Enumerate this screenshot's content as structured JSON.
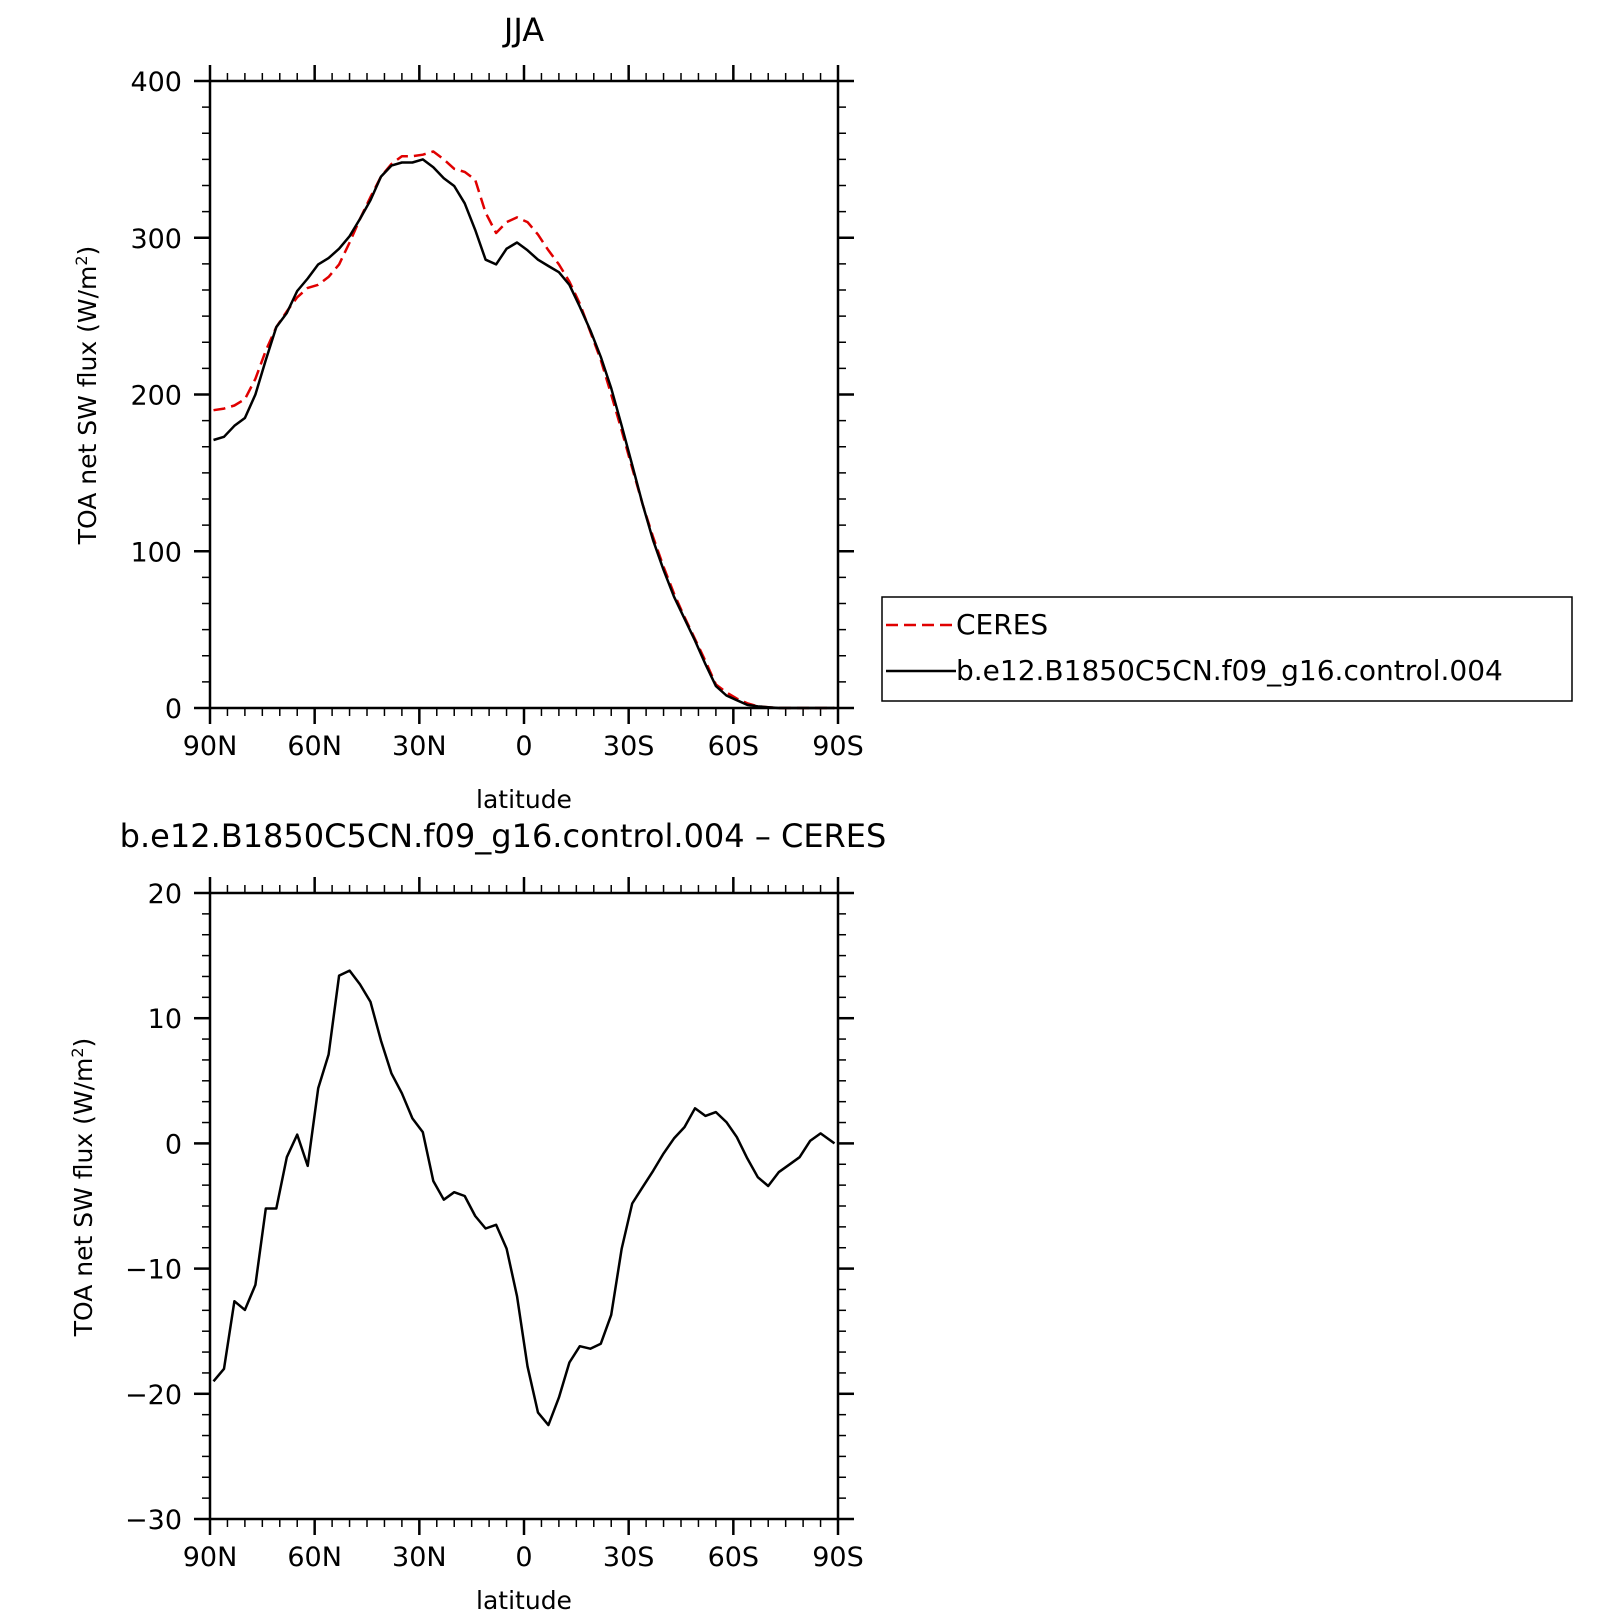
{
  "chart_data": [
    {
      "type": "line",
      "title": "JJA",
      "xlabel": "latitude",
      "ylabel": "TOA net SW flux (W/m²)",
      "ylabel_main": "TOA net SW flux (W/m",
      "ylabel_sup": "2",
      "ylabel_end": ")",
      "xlim": [
        90,
        -90
      ],
      "ylim": [
        0,
        400
      ],
      "xtick_values": [
        90,
        60,
        30,
        0,
        -30,
        -60,
        -90
      ],
      "xtick_labels": [
        "90N",
        "60N",
        "30N",
        "0",
        "30S",
        "60S",
        "90S"
      ],
      "ytick_values": [
        0,
        100,
        200,
        300,
        400
      ],
      "ytick_labels": [
        "0",
        "100",
        "200",
        "300",
        "400"
      ],
      "legend": {
        "position": "right"
      },
      "series": [
        {
          "name": "CERES",
          "color": "#e00000",
          "dash": "dashed",
          "x": [
            89,
            86,
            83,
            80,
            77,
            74,
            71,
            68,
            65,
            62,
            59,
            56,
            53,
            50,
            47,
            44,
            41,
            38,
            35,
            32,
            29,
            26,
            23,
            20,
            17,
            14,
            11,
            8,
            5,
            2,
            -1,
            -4,
            -7,
            -10,
            -13,
            -16,
            -19,
            -22,
            -25,
            -28,
            -31,
            -34,
            -37,
            -40,
            -43,
            -46,
            -49,
            -52,
            -55,
            -58,
            -61,
            -64,
            -67,
            -70,
            -73,
            -76,
            -79,
            -82,
            -85,
            -89
          ],
          "y": [
            190,
            191,
            193,
            197,
            210,
            228,
            243,
            253,
            262,
            268,
            270,
            275,
            283,
            297,
            312,
            326,
            339,
            347,
            352,
            352,
            353,
            355,
            350,
            344,
            342,
            337,
            316,
            303,
            310,
            313,
            310,
            302,
            292,
            283,
            272,
            258,
            240,
            222,
            200,
            177,
            153,
            130,
            109,
            90,
            73,
            58,
            44,
            30,
            15,
            10,
            6,
            3,
            1,
            0.5,
            0,
            0,
            0,
            0,
            0,
            0
          ]
        },
        {
          "name": "b.e12.B1850C5CN.f09_g16.control.004",
          "color": "#000000",
          "dash": "solid",
          "x": [
            89,
            86,
            83,
            80,
            77,
            74,
            71,
            68,
            65,
            62,
            59,
            56,
            53,
            50,
            47,
            44,
            41,
            38,
            35,
            32,
            29,
            26,
            23,
            20,
            17,
            14,
            11,
            8,
            5,
            2,
            -1,
            -4,
            -7,
            -10,
            -13,
            -16,
            -19,
            -22,
            -25,
            -28,
            -31,
            -34,
            -37,
            -40,
            -43,
            -46,
            -49,
            -52,
            -55,
            -58,
            -61,
            -64,
            -67,
            -70,
            -73,
            -76,
            -79,
            -82,
            -85,
            -89
          ],
          "y": [
            171,
            173,
            180,
            185,
            200,
            222,
            243,
            252,
            266,
            274,
            283,
            287,
            293,
            301,
            312,
            324,
            339,
            346,
            348,
            348,
            350,
            345,
            338,
            333,
            322,
            305,
            286,
            283,
            293,
            297,
            292,
            286,
            282,
            278,
            270,
            256,
            241,
            224,
            204,
            180,
            155,
            130,
            107,
            88,
            71,
            57,
            43,
            28,
            14,
            8,
            5,
            2,
            1,
            0.5,
            0,
            0,
            0,
            0,
            0,
            0
          ]
        }
      ]
    },
    {
      "type": "line",
      "title": "b.e12.B1850C5CN.f09_g16.control.004 – CERES",
      "xlabel": "latitude",
      "ylabel": "TOA net SW flux (W/m²)",
      "ylabel_main": "TOA net SW flux (W/m",
      "ylabel_sup": "2",
      "ylabel_end": ")",
      "xlim": [
        90,
        -90
      ],
      "ylim": [
        -30,
        20
      ],
      "xtick_values": [
        90,
        60,
        30,
        0,
        -30,
        -60,
        -90
      ],
      "xtick_labels": [
        "90N",
        "60N",
        "30N",
        "0",
        "30S",
        "60S",
        "90S"
      ],
      "ytick_values": [
        -30,
        -20,
        -10,
        0,
        10,
        20
      ],
      "ytick_labels": [
        "−30",
        "−20",
        "−10",
        "0",
        "10",
        "20"
      ],
      "series": [
        {
          "color": "#000000",
          "dash": "solid",
          "x": [
            89,
            86,
            83,
            80,
            77,
            74,
            71,
            68,
            65,
            62,
            59,
            56,
            53,
            50,
            47,
            44,
            41,
            38,
            35,
            32,
            29,
            26,
            23,
            20,
            17,
            14,
            11,
            8,
            5,
            2,
            -1,
            -4,
            -7,
            -10,
            -13,
            -16,
            -19,
            -22,
            -25,
            -28,
            -31,
            -34,
            -37,
            -40,
            -43,
            -46,
            -49,
            -52,
            -55,
            -58,
            -61,
            -64,
            -67,
            -70,
            -73,
            -76,
            -79,
            -82,
            -85,
            -89
          ],
          "y": [
            -19,
            -18,
            -12.6,
            -13.3,
            -11.3,
            -5.2,
            -5.2,
            -1.1,
            0.7,
            -1.8,
            4.4,
            7.1,
            13.4,
            13.8,
            12.7,
            11.3,
            8.2,
            5.6,
            4,
            2,
            0.9,
            -3,
            -4.5,
            -3.9,
            -4.2,
            -5.8,
            -6.8,
            -6.5,
            -8.4,
            -12.2,
            -17.8,
            -21.5,
            -22.5,
            -20.3,
            -17.5,
            -16.2,
            -16.4,
            -16,
            -13.7,
            -8.4,
            -4.8,
            -3.5,
            -2.2,
            -0.8,
            0.4,
            1.3,
            2.8,
            2.2,
            2.5,
            1.7,
            0.5,
            -1.2,
            -2.7,
            -3.4,
            -2.3,
            -1.7,
            -1.1,
            0.2,
            0.8,
            0
          ]
        }
      ]
    }
  ]
}
